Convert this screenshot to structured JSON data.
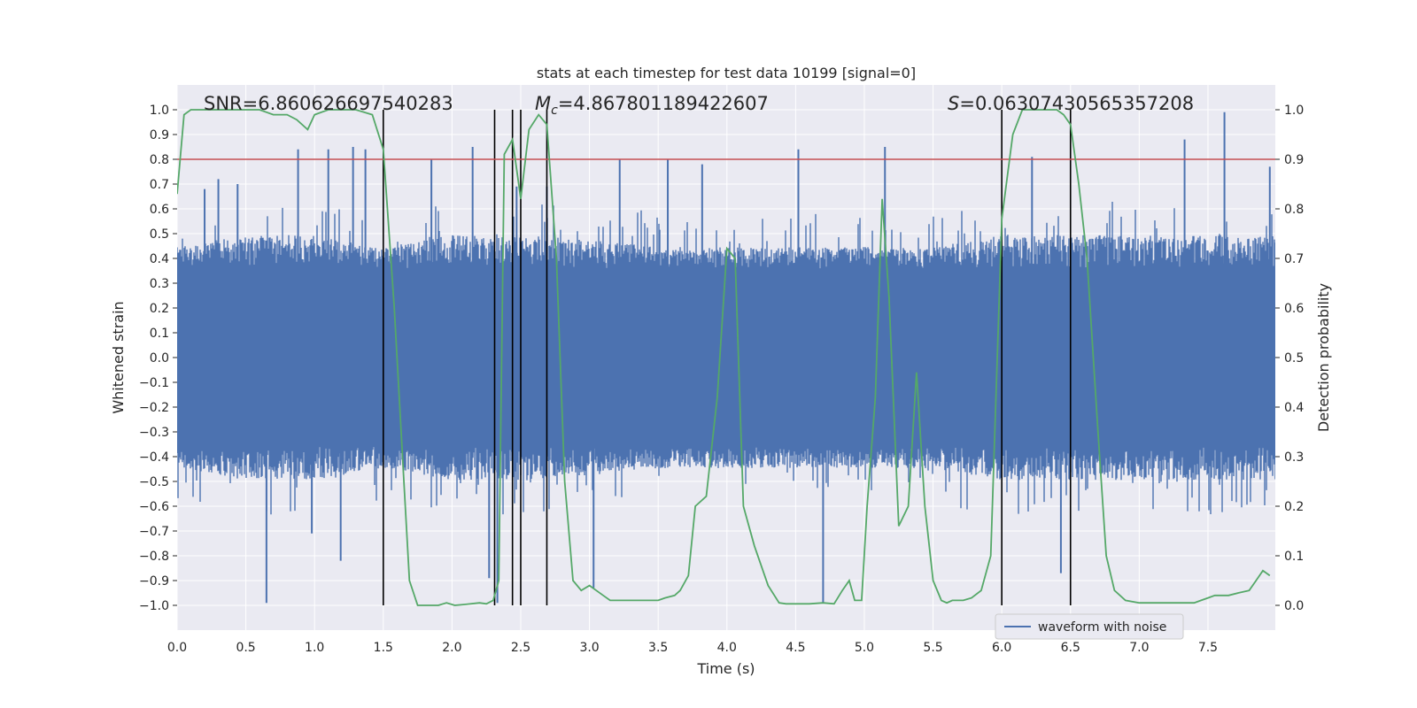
{
  "chart_data": {
    "type": "line",
    "title": "stats at each timestep for test data 10199 [signal=0]",
    "xlabel": "Time (s)",
    "ylabel": "Whitened strain",
    "y2label": "Detection probability",
    "xlim": [
      0,
      7.99
    ],
    "ylim": [
      -1.1,
      1.1
    ],
    "y2lim": [
      -0.05,
      1.05
    ],
    "x_ticks": [
      0.0,
      0.5,
      1.0,
      1.5,
      2.0,
      2.5,
      3.0,
      3.5,
      4.0,
      4.5,
      5.0,
      5.5,
      6.0,
      6.5,
      7.0,
      7.5
    ],
    "x_tick_labels": [
      "0.0",
      "0.5",
      "1.0",
      "1.5",
      "2.0",
      "2.5",
      "3.0",
      "3.5",
      "4.0",
      "4.5",
      "5.0",
      "5.5",
      "6.0",
      "6.5",
      "7.0",
      "7.5"
    ],
    "y_ticks": [
      -1.0,
      -0.9,
      -0.8,
      -0.7,
      -0.6,
      -0.5,
      -0.4,
      -0.3,
      -0.2,
      -0.1,
      0.0,
      0.1,
      0.2,
      0.3,
      0.4,
      0.5,
      0.6,
      0.7,
      0.8,
      0.9,
      1.0
    ],
    "y_tick_labels": [
      "−1.0",
      "−0.9",
      "−0.8",
      "−0.7",
      "−0.6",
      "−0.5",
      "−0.4",
      "−0.3",
      "−0.2",
      "−0.1",
      "0.0",
      "0.1",
      "0.2",
      "0.3",
      "0.4",
      "0.5",
      "0.6",
      "0.7",
      "0.8",
      "0.9",
      "1.0"
    ],
    "y2_ticks": [
      0.0,
      0.1,
      0.2,
      0.3,
      0.4,
      0.5,
      0.6,
      0.7,
      0.8,
      0.9,
      1.0
    ],
    "y2_tick_labels": [
      "0.0",
      "0.1",
      "0.2",
      "0.3",
      "0.4",
      "0.5",
      "0.6",
      "0.7",
      "0.8",
      "0.9",
      "1.0"
    ],
    "grid": true,
    "legend": {
      "placement": "lower-right",
      "entries": [
        "waveform with noise"
      ]
    },
    "annotations": {
      "snr": "SNR=6.860626697540283",
      "mc_symbol": "M",
      "mc_subscript": "c",
      "mc_value": "=4.867801189422607",
      "s_symbol": "S",
      "s_value": "=0.06307430565357208"
    },
    "threshold": {
      "value": 0.9,
      "axis": "y2",
      "color": "#c44e52"
    },
    "vertical_lines": [
      1.5,
      2.31,
      2.44,
      2.5,
      2.69,
      6.0,
      6.5
    ],
    "colors": {
      "waveform": "#4c72b0",
      "probability": "#55a868",
      "vlines": "#000000",
      "background": "#eaeaf2",
      "grid": "#ffffff"
    },
    "series": [
      {
        "name": "waveform with noise",
        "axis": "y",
        "envelope_upper": [
          [
            0.0,
            0.45
          ],
          [
            0.5,
            0.5
          ],
          [
            1.0,
            0.5
          ],
          [
            1.5,
            0.45
          ],
          [
            2.0,
            0.5
          ],
          [
            2.5,
            0.5
          ],
          [
            3.0,
            0.48
          ],
          [
            3.5,
            0.45
          ],
          [
            4.0,
            0.45
          ],
          [
            4.5,
            0.45
          ],
          [
            5.0,
            0.45
          ],
          [
            5.5,
            0.45
          ],
          [
            6.0,
            0.5
          ],
          [
            6.5,
            0.5
          ],
          [
            7.0,
            0.5
          ],
          [
            7.5,
            0.5
          ],
          [
            7.99,
            0.5
          ]
        ],
        "envelope_lower": [
          [
            0.0,
            -0.45
          ],
          [
            0.5,
            -0.5
          ],
          [
            1.0,
            -0.5
          ],
          [
            1.5,
            -0.45
          ],
          [
            2.0,
            -0.5
          ],
          [
            2.5,
            -0.5
          ],
          [
            3.0,
            -0.48
          ],
          [
            3.5,
            -0.45
          ],
          [
            4.0,
            -0.45
          ],
          [
            4.5,
            -0.45
          ],
          [
            5.0,
            -0.45
          ],
          [
            5.5,
            -0.45
          ],
          [
            6.0,
            -0.5
          ],
          [
            6.5,
            -0.5
          ],
          [
            7.0,
            -0.5
          ],
          [
            7.5,
            -0.5
          ],
          [
            7.99,
            -0.5
          ]
        ],
        "spikes": [
          [
            0.2,
            0.68
          ],
          [
            0.3,
            0.72
          ],
          [
            0.44,
            0.7
          ],
          [
            0.65,
            -0.99
          ],
          [
            0.88,
            0.84
          ],
          [
            0.98,
            -0.71
          ],
          [
            1.1,
            0.84
          ],
          [
            1.19,
            -0.82
          ],
          [
            1.28,
            0.85
          ],
          [
            1.37,
            0.84
          ],
          [
            1.85,
            0.8
          ],
          [
            2.15,
            0.85
          ],
          [
            2.27,
            -0.89
          ],
          [
            2.33,
            -0.99
          ],
          [
            2.47,
            0.69
          ],
          [
            2.69,
            0.69
          ],
          [
            3.03,
            -0.93
          ],
          [
            3.22,
            0.8
          ],
          [
            3.57,
            0.8
          ],
          [
            3.82,
            0.78
          ],
          [
            4.52,
            0.84
          ],
          [
            4.7,
            -0.99
          ],
          [
            5.15,
            0.85
          ],
          [
            6.22,
            0.81
          ],
          [
            6.43,
            -0.87
          ],
          [
            7.33,
            0.88
          ],
          [
            7.62,
            0.99
          ],
          [
            7.95,
            0.77
          ]
        ]
      },
      {
        "name": "",
        "axis": "y2",
        "x": [
          0.0,
          0.05,
          0.1,
          0.2,
          0.4,
          0.6,
          0.7,
          0.8,
          0.87,
          0.95,
          1.0,
          1.1,
          1.3,
          1.42,
          1.5,
          1.58,
          1.64,
          1.69,
          1.75,
          1.82,
          1.9,
          1.96,
          2.02,
          2.1,
          2.2,
          2.25,
          2.3,
          2.34,
          2.38,
          2.44,
          2.5,
          2.56,
          2.63,
          2.69,
          2.76,
          2.82,
          2.88,
          2.94,
          3.0,
          3.05,
          3.1,
          3.15,
          3.2,
          3.3,
          3.4,
          3.5,
          3.55,
          3.62,
          3.66,
          3.72,
          3.77,
          3.85,
          3.93,
          4.0,
          4.06,
          4.12,
          4.2,
          4.3,
          4.38,
          4.43,
          4.5,
          4.6,
          4.7,
          4.78,
          4.84,
          4.89,
          4.93,
          4.98,
          5.02,
          5.08,
          5.13,
          5.18,
          5.25,
          5.32,
          5.38,
          5.44,
          5.5,
          5.56,
          5.6,
          5.64,
          5.68,
          5.72,
          5.78,
          5.85,
          5.92,
          6.0,
          6.08,
          6.15,
          6.2,
          6.3,
          6.4,
          6.45,
          6.5,
          6.56,
          6.62,
          6.7,
          6.76,
          6.82,
          6.9,
          7.0,
          7.1,
          7.2,
          7.3,
          7.4,
          7.45,
          7.5,
          7.55,
          7.6,
          7.65,
          7.72,
          7.8,
          7.85,
          7.9,
          7.95
        ],
        "y": [
          0.83,
          0.99,
          1.0,
          1.0,
          1.0,
          1.0,
          0.99,
          0.99,
          0.98,
          0.96,
          0.99,
          1.0,
          1.0,
          0.99,
          0.92,
          0.6,
          0.3,
          0.05,
          0.0,
          0.0,
          0.0,
          0.005,
          0.0,
          0.002,
          0.005,
          0.003,
          0.01,
          0.05,
          0.91,
          0.94,
          0.82,
          0.96,
          0.99,
          0.97,
          0.7,
          0.25,
          0.05,
          0.03,
          0.04,
          0.03,
          0.02,
          0.01,
          0.01,
          0.01,
          0.01,
          0.01,
          0.015,
          0.02,
          0.03,
          0.06,
          0.2,
          0.22,
          0.42,
          0.72,
          0.7,
          0.2,
          0.12,
          0.04,
          0.005,
          0.003,
          0.003,
          0.003,
          0.005,
          0.003,
          0.03,
          0.05,
          0.01,
          0.01,
          0.2,
          0.42,
          0.82,
          0.62,
          0.16,
          0.2,
          0.47,
          0.2,
          0.05,
          0.01,
          0.005,
          0.01,
          0.01,
          0.01,
          0.015,
          0.03,
          0.1,
          0.78,
          0.95,
          1.0,
          1.0,
          1.0,
          1.0,
          0.99,
          0.97,
          0.85,
          0.7,
          0.35,
          0.1,
          0.03,
          0.01,
          0.005,
          0.005,
          0.005,
          0.005,
          0.005,
          0.01,
          0.015,
          0.02,
          0.02,
          0.02,
          0.025,
          0.03,
          0.05,
          0.07,
          0.06
        ]
      }
    ]
  }
}
